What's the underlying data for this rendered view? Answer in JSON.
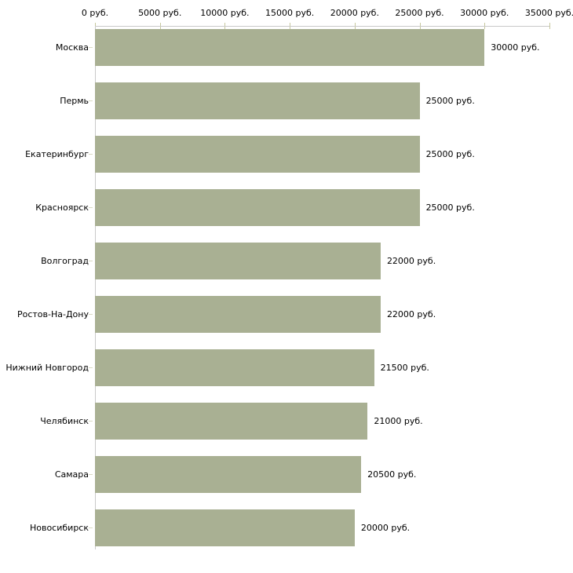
{
  "chart_data": {
    "type": "bar",
    "orientation": "horizontal",
    "title": "",
    "xlabel": "",
    "ylabel": "",
    "unit": "руб.",
    "categories": [
      "Москва",
      "Пермь",
      "Екатеринбург",
      "Красноярск",
      "Волгоград",
      "Ростов-На-Дону",
      "Нижний Новгород",
      "Челябинск",
      "Самара",
      "Новосибирск"
    ],
    "values": [
      30000,
      25000,
      25000,
      25000,
      22000,
      22000,
      21500,
      21000,
      20500,
      20000
    ],
    "value_labels": [
      "30000 руб.",
      "25000 руб.",
      "25000 руб.",
      "25000 руб.",
      "22000 руб.",
      "22000 руб.",
      "21500 руб.",
      "21000 руб.",
      "20500 руб.",
      "20000 руб."
    ],
    "x_ticks": [
      0,
      5000,
      10000,
      15000,
      20000,
      25000,
      30000,
      35000
    ],
    "x_tick_labels": [
      "0 руб.",
      "5000 руб.",
      "10000 руб.",
      "15000 руб.",
      "20000 руб.",
      "25000 руб.",
      "30000 руб.",
      "35000 руб."
    ],
    "xlim": [
      0,
      35000
    ],
    "grid": false,
    "legend": false,
    "value_labels_position": "right-of-bar",
    "colors": {
      "bar": "#a9b093",
      "axis_line": "#c9c9c9",
      "axis_tick": "#c6c79d",
      "category_tick": "#d9dac4",
      "text": "#000000",
      "background": "#ffffff"
    }
  }
}
